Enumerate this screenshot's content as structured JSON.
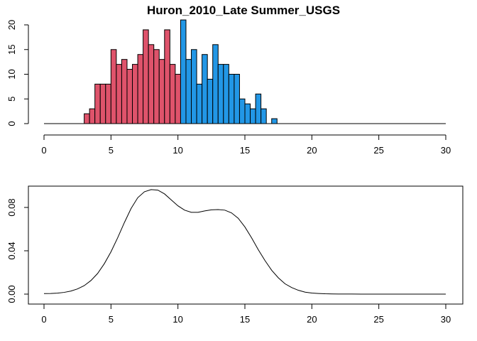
{
  "chart_data": [
    {
      "type": "bar",
      "title": "Huron_2010_Late Summer_USGS",
      "xlabel": "",
      "ylabel": "",
      "xlim": [
        0,
        30
      ],
      "ylim": [
        0,
        21
      ],
      "x_ticks": [
        0,
        5,
        10,
        15,
        20,
        25,
        30
      ],
      "y_ticks": [
        0,
        5,
        10,
        15,
        20
      ],
      "bin_width": 0.4,
      "colors": {
        "lower": "#DF536B",
        "upper": "#2297E6"
      },
      "bins": [
        {
          "x0": 3.0,
          "count": 2,
          "group": "lower"
        },
        {
          "x0": 3.4,
          "count": 3,
          "group": "lower"
        },
        {
          "x0": 3.8,
          "count": 8,
          "group": "lower"
        },
        {
          "x0": 4.2,
          "count": 8,
          "group": "lower"
        },
        {
          "x0": 4.6,
          "count": 8,
          "group": "lower"
        },
        {
          "x0": 5.0,
          "count": 15,
          "group": "lower"
        },
        {
          "x0": 5.4,
          "count": 12,
          "group": "lower"
        },
        {
          "x0": 5.8,
          "count": 13,
          "group": "lower"
        },
        {
          "x0": 6.2,
          "count": 11,
          "group": "lower"
        },
        {
          "x0": 6.6,
          "count": 12,
          "group": "lower"
        },
        {
          "x0": 7.0,
          "count": 14,
          "group": "lower"
        },
        {
          "x0": 7.4,
          "count": 19,
          "group": "lower"
        },
        {
          "x0": 7.8,
          "count": 16,
          "group": "lower"
        },
        {
          "x0": 8.2,
          "count": 15,
          "group": "lower"
        },
        {
          "x0": 8.6,
          "count": 13,
          "group": "lower"
        },
        {
          "x0": 9.0,
          "count": 19,
          "group": "lower"
        },
        {
          "x0": 9.4,
          "count": 12,
          "group": "lower"
        },
        {
          "x0": 9.8,
          "count": 10,
          "group": "lower"
        },
        {
          "x0": 10.2,
          "count": 21,
          "group": "upper"
        },
        {
          "x0": 10.6,
          "count": 13,
          "group": "upper"
        },
        {
          "x0": 11.0,
          "count": 15,
          "group": "upper"
        },
        {
          "x0": 11.4,
          "count": 8,
          "group": "upper"
        },
        {
          "x0": 11.8,
          "count": 14,
          "group": "upper"
        },
        {
          "x0": 12.2,
          "count": 9,
          "group": "upper"
        },
        {
          "x0": 12.6,
          "count": 16,
          "group": "upper"
        },
        {
          "x0": 13.0,
          "count": 12,
          "group": "upper"
        },
        {
          "x0": 13.4,
          "count": 12,
          "group": "upper"
        },
        {
          "x0": 13.8,
          "count": 10,
          "group": "upper"
        },
        {
          "x0": 14.2,
          "count": 10,
          "group": "upper"
        },
        {
          "x0": 14.6,
          "count": 5,
          "group": "upper"
        },
        {
          "x0": 15.0,
          "count": 4,
          "group": "upper"
        },
        {
          "x0": 15.4,
          "count": 3,
          "group": "upper"
        },
        {
          "x0": 15.8,
          "count": 6,
          "group": "upper"
        },
        {
          "x0": 16.2,
          "count": 3,
          "group": "upper"
        },
        {
          "x0": 16.6,
          "count": 0,
          "group": "upper"
        },
        {
          "x0": 17.0,
          "count": 1,
          "group": "upper"
        }
      ]
    },
    {
      "type": "line",
      "title": "",
      "xlabel": "",
      "ylabel": "",
      "xlim": [
        0,
        30
      ],
      "ylim": [
        0,
        0.098
      ],
      "x_ticks": [
        0,
        5,
        10,
        15,
        20,
        25,
        30
      ],
      "y_ticks": [
        "0.00",
        "0.04",
        "0.08"
      ],
      "y_tick_values": [
        0,
        0.04,
        0.08
      ],
      "x": [
        0,
        0.5,
        1,
        1.5,
        2,
        2.5,
        3,
        3.5,
        4,
        4.5,
        5,
        5.5,
        6,
        6.5,
        7,
        7.5,
        8,
        8.5,
        9,
        9.5,
        10,
        10.5,
        11,
        11.5,
        12,
        12.5,
        13,
        13.5,
        14,
        14.5,
        15,
        15.5,
        16,
        16.5,
        17,
        17.5,
        18,
        18.5,
        19,
        19.5,
        20,
        20.5,
        21,
        21.5,
        22,
        23,
        24,
        25,
        26,
        27,
        28,
        29,
        30
      ],
      "y": [
        0.0005,
        0.0006,
        0.0009,
        0.0016,
        0.0028,
        0.0048,
        0.0078,
        0.0125,
        0.019,
        0.028,
        0.039,
        0.052,
        0.066,
        0.079,
        0.089,
        0.0945,
        0.0965,
        0.096,
        0.0925,
        0.087,
        0.0815,
        0.0775,
        0.0755,
        0.0755,
        0.0768,
        0.0778,
        0.078,
        0.0775,
        0.075,
        0.07,
        0.062,
        0.052,
        0.041,
        0.031,
        0.022,
        0.015,
        0.0095,
        0.006,
        0.0035,
        0.0018,
        0.001,
        0.0006,
        0.0003,
        0.0002,
        0.0001,
        5e-05,
        3e-05,
        2e-05,
        1e-05,
        1e-05,
        1e-05,
        1e-05,
        1e-05
      ]
    }
  ]
}
